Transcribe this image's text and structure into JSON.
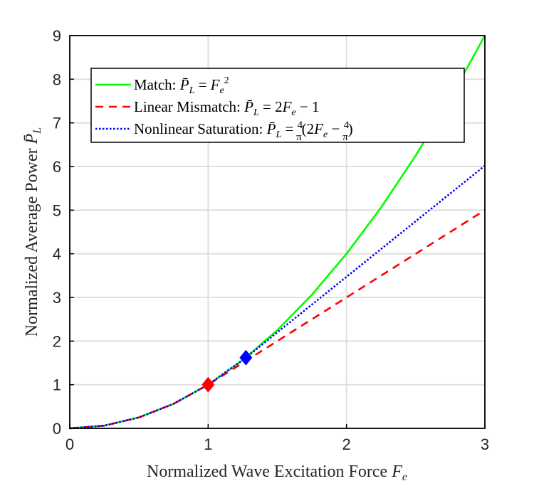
{
  "chart_data": {
    "type": "line",
    "xlabel": "Normalized Wave Excitation Force F_e",
    "ylabel": "Normalized Average Power P̄_L",
    "xlim": [
      0,
      3
    ],
    "ylim": [
      0,
      9
    ],
    "xticks": [
      "0",
      "1",
      "2",
      "3"
    ],
    "yticks": [
      "0",
      "1",
      "2",
      "3",
      "4",
      "5",
      "6",
      "7",
      "8",
      "9"
    ],
    "grid": true,
    "legend_position": "top-left",
    "series": [
      {
        "name": "Match: P̄_L = F_e²",
        "color": "#00ff00",
        "style": "solid",
        "x": [
          0,
          0.25,
          0.5,
          0.75,
          1.0,
          1.25,
          1.5,
          1.75,
          2.0,
          2.25,
          2.5,
          2.75,
          3.0
        ],
        "y": [
          0,
          0.0625,
          0.25,
          0.5625,
          1.0,
          1.5625,
          2.25,
          3.0625,
          4.0,
          5.0625,
          6.25,
          7.5625,
          9.0
        ]
      },
      {
        "name": "Linear Mismatch: P̄_L = 2F_e − 1",
        "color": "#ff0000",
        "style": "dashed",
        "x": [
          0,
          0.25,
          0.5,
          0.75,
          1.0,
          1.5,
          2.0,
          2.5,
          3.0
        ],
        "y": [
          0,
          0.0625,
          0.25,
          0.5625,
          1.0,
          2.0,
          3.0,
          4.0,
          5.0
        ]
      },
      {
        "name": "Nonlinear Saturation: P̄_L = (4/π)(2F_e − 4/π)",
        "color": "#0000ff",
        "style": "dotted",
        "x": [
          0,
          0.25,
          0.5,
          0.75,
          1.0,
          1.273,
          1.5,
          2.0,
          2.5,
          3.0
        ],
        "y": [
          0,
          0.0625,
          0.25,
          0.5625,
          1.0,
          1.621,
          2.2,
          3.473,
          4.746,
          6.019
        ]
      }
    ],
    "markers": [
      {
        "shape": "diamond",
        "color": "#ff0000",
        "x": 1.0,
        "y": 1.0
      },
      {
        "shape": "diamond",
        "color": "#0000ff",
        "x": 1.273,
        "y": 1.621
      }
    ]
  }
}
